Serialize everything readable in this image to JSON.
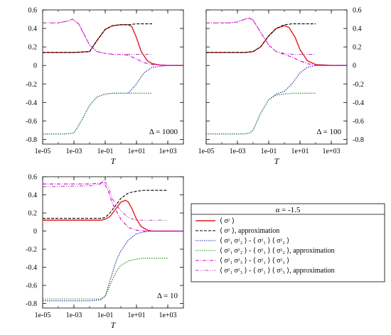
{
  "legend": {
    "title": "α = -1.5",
    "entries": [
      {
        "key": "sz",
        "label": "⟨ σᶻ ⟩",
        "color": "#e41a1c",
        "dash": "solid"
      },
      {
        "key": "sz_approx",
        "label": "⟨ σᶻ ⟩, approximation",
        "color": "#000000",
        "dash": "dashed"
      },
      {
        "key": "c12",
        "label": "⟨ σᶻ₁ σᶻ₂ ⟩ - ⟨ σᶻ₁ ⟩ ⟨ σᶻ₂ ⟩",
        "color": "#1f1f9f",
        "dash": "dotted"
      },
      {
        "key": "c12_approx",
        "label": "⟨ σᶻ₁ σᶻ₂ ⟩ - ⟨ σᶻ₁ ⟩ ⟨ σᶻ₂ ⟩, approximation",
        "color": "#1a8a1a",
        "dash": "dotted"
      },
      {
        "key": "c13",
        "label": "⟨ σᶻ₁ σᶻ₃ ⟩ - ⟨ σᶻ₁ ⟩ ⟨ σᶻ₃ ⟩",
        "color": "#d400d4",
        "dash": "dashdot"
      },
      {
        "key": "c13_approx",
        "label": "⟨ σᶻ₁ σᶻ₃ ⟩ - ⟨ σᶻ₁ ⟩ ⟨ σᶻ₃ ⟩, approximation",
        "color": "#c040c0",
        "dash": "dashdotdot"
      }
    ]
  },
  "chart_data": [
    {
      "type": "line",
      "panel_label": "Δ = 1000",
      "xlabel": "T",
      "x_scale": "log",
      "xlim": [
        1e-05,
        10000
      ],
      "x_ticks": [
        "1e-05",
        "1e-03",
        "1e-01",
        "1e+01",
        "1e+03"
      ],
      "ylim": [
        -0.85,
        0.6
      ],
      "y_ticks": [
        "0.6",
        "0.4",
        "0.2",
        "0",
        "-0.2",
        "-0.4",
        "-0.6",
        "-0.8"
      ],
      "y_axis_side": "left",
      "series": [
        {
          "key": "sz",
          "x": [
            1e-05,
            0.001,
            0.01,
            0.03,
            0.1,
            0.3,
            1,
            3,
            5,
            10,
            20,
            50,
            100,
            300,
            1000,
            10000
          ],
          "y": [
            0.14,
            0.14,
            0.15,
            0.27,
            0.39,
            0.43,
            0.44,
            0.44,
            0.42,
            0.3,
            0.15,
            0.05,
            0.02,
            0.005,
            0.0,
            0.0
          ]
        },
        {
          "key": "sz_approx",
          "x": [
            1e-05,
            0.001,
            0.01,
            0.03,
            0.1,
            0.3,
            1,
            3,
            10,
            30,
            100
          ],
          "y": [
            0.14,
            0.14,
            0.15,
            0.27,
            0.39,
            0.43,
            0.44,
            0.44,
            0.45,
            0.45,
            0.45
          ]
        },
        {
          "key": "c12",
          "x": [
            1e-05,
            0.0003,
            0.001,
            0.003,
            0.01,
            0.03,
            0.1,
            0.3,
            1,
            3,
            10,
            30,
            100,
            1000,
            10000
          ],
          "y": [
            -0.74,
            -0.74,
            -0.73,
            -0.6,
            -0.43,
            -0.34,
            -0.31,
            -0.3,
            -0.3,
            -0.3,
            -0.2,
            -0.08,
            -0.02,
            0.0,
            0.0
          ]
        },
        {
          "key": "c12_approx",
          "x": [
            1e-05,
            0.0003,
            0.001,
            0.003,
            0.01,
            0.03,
            0.1,
            0.3,
            1,
            3,
            10,
            30,
            100
          ],
          "y": [
            -0.74,
            -0.74,
            -0.73,
            -0.6,
            -0.43,
            -0.34,
            -0.31,
            -0.3,
            -0.3,
            -0.3,
            -0.3,
            -0.3,
            -0.3
          ]
        },
        {
          "key": "c13",
          "x": [
            1e-05,
            0.0001,
            0.0004,
            0.0008,
            0.002,
            0.005,
            0.01,
            0.03,
            0.1,
            0.3,
            1,
            3,
            10,
            30,
            100,
            1000,
            10000
          ],
          "y": [
            0.46,
            0.46,
            0.48,
            0.5,
            0.45,
            0.32,
            0.22,
            0.15,
            0.13,
            0.12,
            0.12,
            0.11,
            0.07,
            0.03,
            0.01,
            0.0,
            0.0
          ]
        },
        {
          "key": "c13_approx",
          "x": [
            1e-05,
            0.0001,
            0.0004,
            0.0008,
            0.002,
            0.005,
            0.01,
            0.03,
            0.1,
            0.3,
            1,
            3,
            10,
            30,
            100
          ],
          "y": [
            0.46,
            0.46,
            0.48,
            0.5,
            0.45,
            0.32,
            0.22,
            0.15,
            0.13,
            0.12,
            0.12,
            0.12,
            0.12,
            0.12,
            0.12
          ]
        }
      ]
    },
    {
      "type": "line",
      "panel_label": "Δ = 100",
      "xlabel": "T",
      "x_scale": "log",
      "xlim": [
        1e-05,
        10000
      ],
      "x_ticks": [
        "1e-05",
        "1e-03",
        "1e-01",
        "1e+01",
        "1e+03"
      ],
      "ylim": [
        -0.85,
        0.6
      ],
      "y_ticks": [
        "0.6",
        "0.4",
        "0.2",
        "0",
        "-0.2",
        "-0.4",
        "-0.6",
        "-0.8"
      ],
      "y_axis_side": "right",
      "series": [
        {
          "key": "sz",
          "x": [
            1e-05,
            0.003,
            0.01,
            0.03,
            0.1,
            0.3,
            1,
            2,
            5,
            10,
            30,
            100,
            1000,
            10000
          ],
          "y": [
            0.14,
            0.14,
            0.15,
            0.2,
            0.32,
            0.4,
            0.43,
            0.41,
            0.3,
            0.17,
            0.05,
            0.01,
            0.0,
            0.0
          ]
        },
        {
          "key": "sz_approx",
          "x": [
            1e-05,
            0.003,
            0.01,
            0.03,
            0.1,
            0.3,
            1,
            3,
            10,
            30,
            100
          ],
          "y": [
            0.14,
            0.14,
            0.15,
            0.2,
            0.32,
            0.4,
            0.44,
            0.45,
            0.45,
            0.45,
            0.45
          ]
        },
        {
          "key": "c12",
          "x": [
            1e-05,
            0.003,
            0.006,
            0.01,
            0.03,
            0.1,
            0.3,
            1,
            3,
            10,
            30,
            100,
            1000,
            10000
          ],
          "y": [
            -0.74,
            -0.74,
            -0.73,
            -0.7,
            -0.52,
            -0.37,
            -0.31,
            -0.28,
            -0.2,
            -0.08,
            -0.02,
            0.0,
            0.0,
            0.0
          ]
        },
        {
          "key": "c12_approx",
          "x": [
            1e-05,
            0.003,
            0.006,
            0.01,
            0.03,
            0.1,
            0.3,
            1,
            3,
            10,
            30,
            100
          ],
          "y": [
            -0.74,
            -0.74,
            -0.73,
            -0.7,
            -0.52,
            -0.37,
            -0.32,
            -0.31,
            -0.3,
            -0.3,
            -0.3,
            -0.3
          ]
        },
        {
          "key": "c13",
          "x": [
            1e-05,
            0.0003,
            0.001,
            0.003,
            0.006,
            0.01,
            0.03,
            0.1,
            0.3,
            1,
            3,
            10,
            30,
            100,
            1000,
            10000
          ],
          "y": [
            0.46,
            0.46,
            0.47,
            0.5,
            0.51,
            0.49,
            0.36,
            0.22,
            0.15,
            0.12,
            0.09,
            0.05,
            0.02,
            0.0,
            0.0,
            0.0
          ]
        },
        {
          "key": "c13_approx",
          "x": [
            1e-05,
            0.0003,
            0.001,
            0.003,
            0.006,
            0.01,
            0.03,
            0.1,
            0.3,
            1,
            3,
            10,
            30,
            100
          ],
          "y": [
            0.46,
            0.46,
            0.47,
            0.5,
            0.51,
            0.49,
            0.36,
            0.22,
            0.15,
            0.13,
            0.12,
            0.12,
            0.12,
            0.12
          ]
        }
      ]
    },
    {
      "type": "line",
      "panel_label": "Δ = 10",
      "xlabel": "T",
      "x_scale": "log",
      "xlim": [
        1e-05,
        10000
      ],
      "x_ticks": [
        "1e-05",
        "1e-03",
        "1e-01",
        "1e+01",
        "1e+03"
      ],
      "ylim": [
        -0.85,
        0.6
      ],
      "y_ticks": [
        "0.6",
        "0.4",
        "0.2",
        "0",
        "-0.2",
        "-0.4",
        "-0.6",
        "-0.8"
      ],
      "y_axis_side": "left",
      "series": [
        {
          "key": "sz",
          "x": [
            1e-05,
            0.01,
            0.05,
            0.1,
            0.2,
            0.5,
            1,
            2,
            3,
            5,
            10,
            20,
            50,
            100,
            1000,
            10000
          ],
          "y": [
            0.12,
            0.12,
            0.12,
            0.13,
            0.16,
            0.25,
            0.32,
            0.34,
            0.32,
            0.25,
            0.13,
            0.05,
            0.01,
            0.0,
            0.0,
            0.0
          ]
        },
        {
          "key": "sz_approx",
          "x": [
            1e-05,
            0.01,
            0.05,
            0.1,
            0.2,
            0.5,
            1,
            3,
            10,
            30,
            100,
            1000
          ],
          "y": [
            0.14,
            0.14,
            0.14,
            0.15,
            0.2,
            0.29,
            0.36,
            0.42,
            0.44,
            0.45,
            0.45,
            0.45
          ]
        },
        {
          "key": "c12",
          "x": [
            1e-05,
            0.01,
            0.05,
            0.1,
            0.2,
            0.5,
            1,
            3,
            10,
            30,
            100,
            1000,
            10000
          ],
          "y": [
            -0.77,
            -0.77,
            -0.76,
            -0.72,
            -0.55,
            -0.33,
            -0.22,
            -0.1,
            -0.03,
            -0.01,
            0.0,
            0.0,
            0.0
          ]
        },
        {
          "key": "c12_approx",
          "x": [
            1e-05,
            0.01,
            0.05,
            0.1,
            0.2,
            0.5,
            1,
            3,
            10,
            30,
            100,
            1000
          ],
          "y": [
            -0.75,
            -0.75,
            -0.75,
            -0.72,
            -0.6,
            -0.45,
            -0.38,
            -0.33,
            -0.31,
            -0.3,
            -0.3,
            -0.3
          ]
        },
        {
          "key": "c13",
          "x": [
            1e-05,
            0.01,
            0.05,
            0.08,
            0.15,
            0.3,
            1,
            3,
            10,
            30,
            100,
            1000,
            10000
          ],
          "y": [
            0.52,
            0.52,
            0.53,
            0.54,
            0.45,
            0.3,
            0.13,
            0.04,
            0.01,
            0.0,
            0.0,
            0.0,
            0.0
          ]
        },
        {
          "key": "c13_approx",
          "x": [
            1e-05,
            0.01,
            0.05,
            0.08,
            0.15,
            0.3,
            1,
            3,
            10,
            30,
            100,
            1000
          ],
          "y": [
            0.49,
            0.5,
            0.52,
            0.56,
            0.5,
            0.35,
            0.22,
            0.15,
            0.12,
            0.12,
            0.12,
            0.12
          ]
        }
      ]
    }
  ]
}
